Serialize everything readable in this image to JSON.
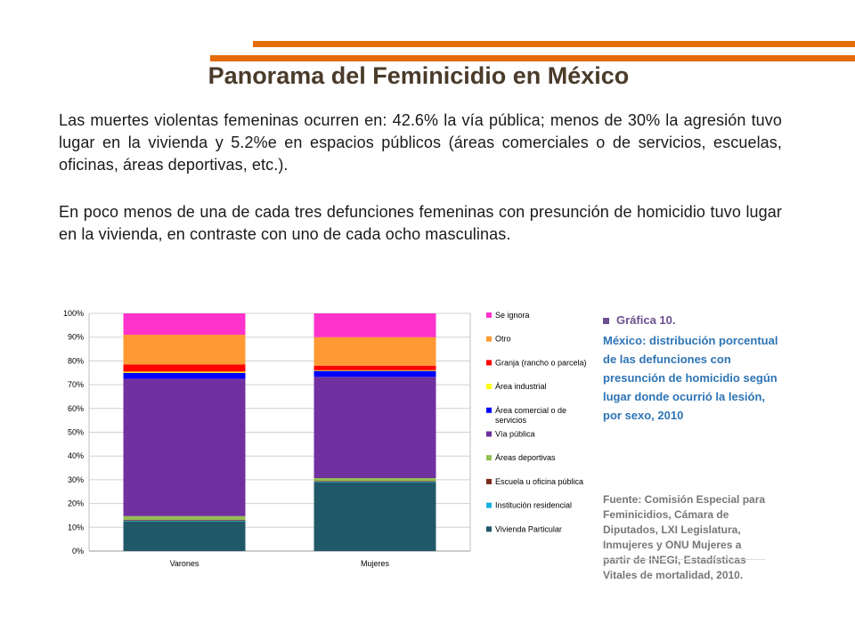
{
  "title": "Panorama del Feminicidio en México",
  "paragraph1": "Las muertes violentas femeninas ocurren en: 42.6% la vía pública; menos de 30% la agresión tuvo lugar en la vivienda y 5.2%e en espacios públicos (áreas comerciales o de servicios, escuelas, oficinas, áreas deportivas, etc.).",
  "paragraph2": "En poco menos de una de cada tres defunciones femeninas con presunción de homicidio tuvo lugar en la vivienda, en contraste con uno de cada ocho masculinas.",
  "graphic_label": "Gráfica 10.",
  "graphic_description": "México: distribución porcentual de las defunciones con presunción de homicidio según lugar donde ocurrió la lesión, por sexo, 2010",
  "source": "Fuente: Comisión Especial para Feminicidios, Cámara de Diputados, LXI Legislatura, Inmujeres y ONU Mujeres a partir de INEGI, Estadísticas Vitales de mortalidad, 2010.",
  "colors": {
    "accent_line": "#e46c0a"
  },
  "chart_data": {
    "type": "bar",
    "stacked": true,
    "categories": [
      "Varones",
      "Mujeres"
    ],
    "ylim": [
      0,
      100
    ],
    "yticks": [
      "0%",
      "10%",
      "20%",
      "30%",
      "40%",
      "50%",
      "60%",
      "70%",
      "80%",
      "90%",
      "100%"
    ],
    "grid": true,
    "legend_position": "right",
    "series": [
      {
        "name": "Vivienda Particular",
        "color": "#215868",
        "values": [
          12.5,
          29.0
        ]
      },
      {
        "name": "Institución residencial",
        "color": "#17b0e0",
        "values": [
          0.3,
          0.2
        ]
      },
      {
        "name": "Escuela u oficina pública",
        "color": "#7b2a1a",
        "values": [
          0.4,
          0.3
        ]
      },
      {
        "name": "Áreas deportivas",
        "color": "#92c050",
        "values": [
          1.5,
          1.2
        ]
      },
      {
        "name": "Vía pública",
        "color": "#7030a0",
        "values": [
          57.8,
          42.6
        ]
      },
      {
        "name": "Área comercial o de servicios",
        "color": "#0000ff",
        "values": [
          2.5,
          2.5
        ]
      },
      {
        "name": "Área industrial",
        "color": "#ffff00",
        "values": [
          0.5,
          0.3
        ]
      },
      {
        "name": "Granja (rancho o parcela)",
        "color": "#ff0000",
        "values": [
          3.0,
          1.9
        ]
      },
      {
        "name": "Otro",
        "color": "#ff9933",
        "values": [
          12.5,
          12.0
        ]
      },
      {
        "name": "Se ignora",
        "color": "#ff33cc",
        "values": [
          9.0,
          10.0
        ]
      }
    ]
  }
}
